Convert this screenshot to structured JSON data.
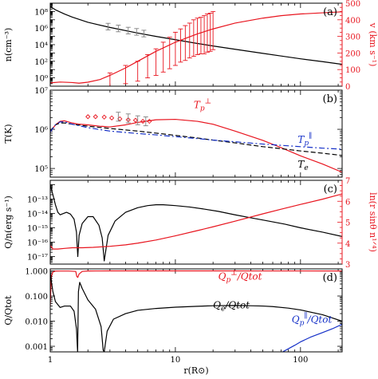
{
  "chart_data": [
    {
      "panel": "(a)",
      "type": "line",
      "xscale": "log",
      "xlim": [
        1,
        215
      ],
      "x_ticks": [
        "1",
        "10",
        "100"
      ],
      "ylabel": "n(cm⁻³)",
      "yscale": "log",
      "ylim": [
        0.1,
        1000000000.0
      ],
      "y_ticks": [
        "10⁰",
        "10²",
        "10⁴",
        "10⁶",
        "10⁸"
      ],
      "y2label": "v (km s⁻¹)",
      "y2lim": [
        0,
        500
      ],
      "y2_ticks": [
        "0",
        "100",
        "200",
        "300",
        "400",
        "500"
      ],
      "series": [
        {
          "color": "#000000",
          "axis": "left",
          "x": [
            1,
            1.1,
            1.3,
            1.5,
            2,
            3,
            5,
            7,
            10,
            15,
            20,
            30,
            50,
            70,
            100,
            150,
            215
          ],
          "y": [
            400000000.0,
            160000000.0,
            50000000.0,
            21000000.0,
            5000000.0,
            1200000.0,
            250000.0,
            100000.0,
            40000.0,
            14000.0,
            7000.0,
            2800.0,
            900,
            430,
            200,
            90,
            43
          ]
        },
        {
          "color": "#e8141e",
          "axis": "right",
          "x": [
            1,
            1.2,
            1.5,
            1.7,
            2,
            2.5,
            3,
            4,
            5,
            7,
            10,
            15,
            20,
            30,
            50,
            70,
            100,
            150,
            215
          ],
          "y": [
            20,
            25,
            22,
            18,
            24,
            40,
            65,
            110,
            150,
            210,
            265,
            315,
            345,
            380,
            410,
            425,
            435,
            442,
            448
          ]
        },
        {
          "color": "#808080",
          "axis": "left",
          "style": "errorbar",
          "x": [
            2.9,
            3.5,
            4.2,
            4.9,
            5.6
          ],
          "y": [
            1500000.0,
            900000.0,
            500000.0,
            350000.0,
            220000.0
          ],
          "err_factor": [
            2.5,
            2.5,
            2.5,
            2.5,
            2.5
          ]
        },
        {
          "color": "#e8141e",
          "axis": "right",
          "style": "errorbar",
          "x": [
            3.0,
            4.0,
            5.0,
            6.0,
            7.0,
            8.0,
            9.0,
            10.0,
            11.0,
            12.0,
            13.0,
            14.0,
            15.0,
            16.0,
            17.0,
            18.0,
            19.0,
            20.0
          ],
          "y": [
            40,
            70,
            90,
            120,
            145,
            175,
            200,
            225,
            245,
            260,
            275,
            290,
            300,
            305,
            310,
            320,
            325,
            335
          ],
          "err": [
            40,
            55,
            60,
            70,
            80,
            90,
            95,
            100,
            100,
            105,
            105,
            110,
            110,
            110,
            115,
            115,
            115,
            115
          ]
        }
      ],
      "annotations": []
    },
    {
      "panel": "(b)",
      "type": "line",
      "xscale": "log",
      "xlim": [
        1,
        215
      ],
      "x_ticks": [
        "1",
        "10",
        "100"
      ],
      "ylabel": "T(K)",
      "yscale": "log",
      "ylim": [
        60000,
        10000000.0
      ],
      "y_ticks": [
        "10⁵",
        "10⁶",
        "10⁷"
      ],
      "series": [
        {
          "name": "Tp_perp",
          "color": "#e8141e",
          "x": [
            1,
            1.1,
            1.2,
            1.3,
            1.5,
            1.7,
            2,
            2.5,
            3,
            4,
            5,
            7,
            10,
            15,
            20,
            30,
            50,
            70,
            100,
            150,
            215
          ],
          "y": [
            850000.0,
            1300000.0,
            1600000.0,
            1650000.0,
            1450000.0,
            1350000.0,
            1300000.0,
            1200000.0,
            1150000.0,
            1300000.0,
            1500000.0,
            1750000.0,
            1800000.0,
            1600000.0,
            1350000.0,
            900000.0,
            520000.0,
            340000.0,
            210000.0,
            130000.0,
            80000.0
          ]
        },
        {
          "name": "Te",
          "color": "#000000",
          "dash": "6,3",
          "x": [
            1,
            1.1,
            1.2,
            1.3,
            1.5,
            2,
            3,
            5,
            7,
            10,
            15,
            20,
            30,
            50,
            70,
            100,
            150,
            215
          ],
          "y": [
            900000.0,
            1300000.0,
            1450000.0,
            1450000.0,
            1350000.0,
            1200000.0,
            1050000.0,
            900000.0,
            800000.0,
            700000.0,
            600000.0,
            530000.0,
            450000.0,
            360000.0,
            320000.0,
            280000.0,
            245000.0,
            215000.0
          ]
        },
        {
          "name": "Tp_par",
          "color": "#1530c8",
          "dash": "7,3,2,3",
          "x": [
            1,
            1.1,
            1.2,
            1.3,
            1.5,
            2,
            3,
            5,
            7,
            10,
            15,
            20,
            30,
            50,
            70,
            100,
            150,
            215
          ],
          "y": [
            850000.0,
            1300000.0,
            1550000.0,
            1550000.0,
            1350000.0,
            1100000.0,
            900000.0,
            780000.0,
            720000.0,
            650000.0,
            580000.0,
            530000.0,
            480000.0,
            420000.0,
            390000.0,
            360000.0,
            330000.0,
            310000.0
          ]
        },
        {
          "name": "obs_diamonds",
          "color": "#e8141e",
          "style": "marker",
          "x": [
            2.0,
            2.3,
            2.7,
            3.1,
            3.6,
            4.2,
            4.8,
            5.5,
            6.2
          ],
          "y": [
            2100000.0,
            2100000.0,
            2050000.0,
            1950000.0,
            1850000.0,
            1750000.0,
            1700000.0,
            1600000.0,
            1600000.0
          ]
        },
        {
          "name": "obs_bars",
          "color": "#808080",
          "style": "errorbar",
          "x": [
            3.5,
            4.2,
            5.0,
            5.8
          ],
          "y": [
            2100000.0,
            1900000.0,
            1700000.0,
            1600000.0
          ],
          "err_factor": [
            1.3,
            1.3,
            1.3,
            1.3
          ]
        }
      ],
      "annotations": [
        {
          "text": "Tp",
          "sup": "⊥",
          "color": "#e8141e",
          "x": 14,
          "y": 3500000.0
        },
        {
          "text": "Tp",
          "sup": "∥",
          "color": "#1530c8",
          "x": 95,
          "y": 450000.0
        },
        {
          "text": "Te",
          "sup": "",
          "color": "#000000",
          "x": 95,
          "y": 105000.0
        }
      ]
    },
    {
      "panel": "(c)",
      "type": "line",
      "xscale": "log",
      "xlim": [
        1,
        215
      ],
      "x_ticks": [
        "1",
        "10",
        "100"
      ],
      "ylabel": "Q/n(erg s⁻¹)",
      "yscale": "log",
      "ylim": [
        3e-18,
        2e-12
      ],
      "y_ticks": [
        "10⁻¹⁷",
        "10⁻¹⁶",
        "10⁻¹⁵",
        "10⁻¹⁴",
        "10⁻¹³"
      ],
      "y2label": "ln(r sinθ n¹ᐟ⁴)",
      "y2lim": [
        3,
        7
      ],
      "y2_ticks": [
        "3",
        "4",
        "5",
        "6",
        "7"
      ],
      "series": [
        {
          "color": "#000000",
          "axis": "left",
          "x": [
            1,
            1.05,
            1.1,
            1.15,
            1.2,
            1.28,
            1.35,
            1.45,
            1.55,
            1.62,
            1.66,
            1.7,
            1.8,
            2.0,
            2.2,
            2.45,
            2.6,
            2.7,
            2.9,
            3.3,
            4,
            5,
            6,
            7,
            8,
            10,
            13,
            17,
            22,
            30,
            40,
            55,
            75,
            100,
            150,
            215
          ],
          "y": [
            1e-12,
            2e-13,
            4e-14,
            1.2e-14,
            8e-15,
            1e-14,
            1.2e-14,
            9e-15,
            4e-15,
            5e-16,
            1e-17,
            3e-16,
            2e-15,
            6e-15,
            6e-15,
            1.5e-15,
            2e-16,
            5e-18,
            3e-16,
            3e-15,
            1.2e-14,
            2.5e-14,
            3.5e-14,
            4e-14,
            4e-14,
            3.5e-14,
            2.8e-14,
            2e-14,
            1.4e-14,
            8e-15,
            5e-15,
            3e-15,
            1.8e-15,
            1e-15,
            5e-16,
            2.5e-16
          ]
        },
        {
          "color": "#e8141e",
          "axis": "right",
          "x": [
            1,
            1.05,
            1.15,
            1.3,
            1.5,
            1.8,
            2.2,
            3,
            4,
            5,
            7,
            10,
            15,
            20,
            30,
            50,
            70,
            100,
            150,
            215
          ],
          "y": [
            3.9,
            3.72,
            3.72,
            3.75,
            3.78,
            3.78,
            3.8,
            3.85,
            3.92,
            4.0,
            4.15,
            4.35,
            4.6,
            4.78,
            5.05,
            5.4,
            5.62,
            5.85,
            6.1,
            6.35
          ]
        }
      ],
      "annotations": []
    },
    {
      "panel": "(d)",
      "type": "line",
      "xscale": "log",
      "xlim": [
        1,
        215
      ],
      "x_ticks": [
        "1",
        "10",
        "100"
      ],
      "xlabel": "r(R⊙)",
      "ylabel": "Q/Qtot",
      "yscale": "log",
      "ylim": [
        0.0006,
        1.2
      ],
      "y_ticks": [
        "0.001",
        "0.010",
        "0.100",
        "1.000"
      ],
      "series": [
        {
          "name": "Qp_perp",
          "color": "#e8141e",
          "x": [
            1,
            1.02,
            1.05,
            1.1,
            1.2,
            1.4,
            1.6,
            1.63,
            1.66,
            1.7,
            1.8,
            2.0,
            2.3,
            3,
            5,
            10,
            20,
            50,
            100,
            215
          ],
          "y": [
            0.04,
            0.6,
            0.9,
            0.98,
            0.985,
            0.985,
            0.95,
            0.6,
            0.55,
            0.75,
            0.95,
            0.99,
            0.995,
            0.998,
            0.998,
            0.998,
            0.998,
            0.997,
            0.995,
            0.99
          ]
        },
        {
          "name": "Qe",
          "color": "#000000",
          "x": [
            1,
            1.02,
            1.05,
            1.1,
            1.2,
            1.3,
            1.45,
            1.55,
            1.62,
            1.655,
            1.68,
            1.72,
            1.8,
            2.0,
            2.3,
            2.55,
            2.65,
            2.7,
            2.85,
            3.2,
            4,
            5,
            7,
            10,
            15,
            20,
            30,
            40,
            50,
            60,
            80,
            100,
            150,
            215
          ],
          "y": [
            0.95,
            0.4,
            0.15,
            0.06,
            0.035,
            0.04,
            0.04,
            0.025,
            0.005,
            0.0006,
            0.15,
            0.35,
            0.2,
            0.07,
            0.03,
            0.006,
            0.0007,
            0.0006,
            0.004,
            0.012,
            0.02,
            0.027,
            0.032,
            0.036,
            0.039,
            0.041,
            0.042,
            0.041,
            0.04,
            0.038,
            0.033,
            0.028,
            0.018,
            0.01
          ]
        },
        {
          "name": "Qp_par",
          "color": "#1530c8",
          "x": [
            72,
            80,
            90,
            100,
            120,
            150,
            180,
            215
          ],
          "y": [
            0.0006,
            0.0008,
            0.0011,
            0.0015,
            0.0023,
            0.0035,
            0.005,
            0.0075
          ]
        }
      ],
      "annotations": [
        {
          "text": "Qp",
          "sup": "⊥",
          "tail": "/Qtot",
          "color": "#e8141e",
          "x": 22,
          "y": 0.45
        },
        {
          "text": "Qe",
          "sup": "",
          "tail": "/Qtot",
          "color": "#000000",
          "x": 20,
          "y": 0.032
        },
        {
          "text": "Qp",
          "sup": "∥",
          "tail": "/Qtot",
          "color": "#1530c8",
          "x": 85,
          "y": 0.0085
        }
      ]
    }
  ]
}
